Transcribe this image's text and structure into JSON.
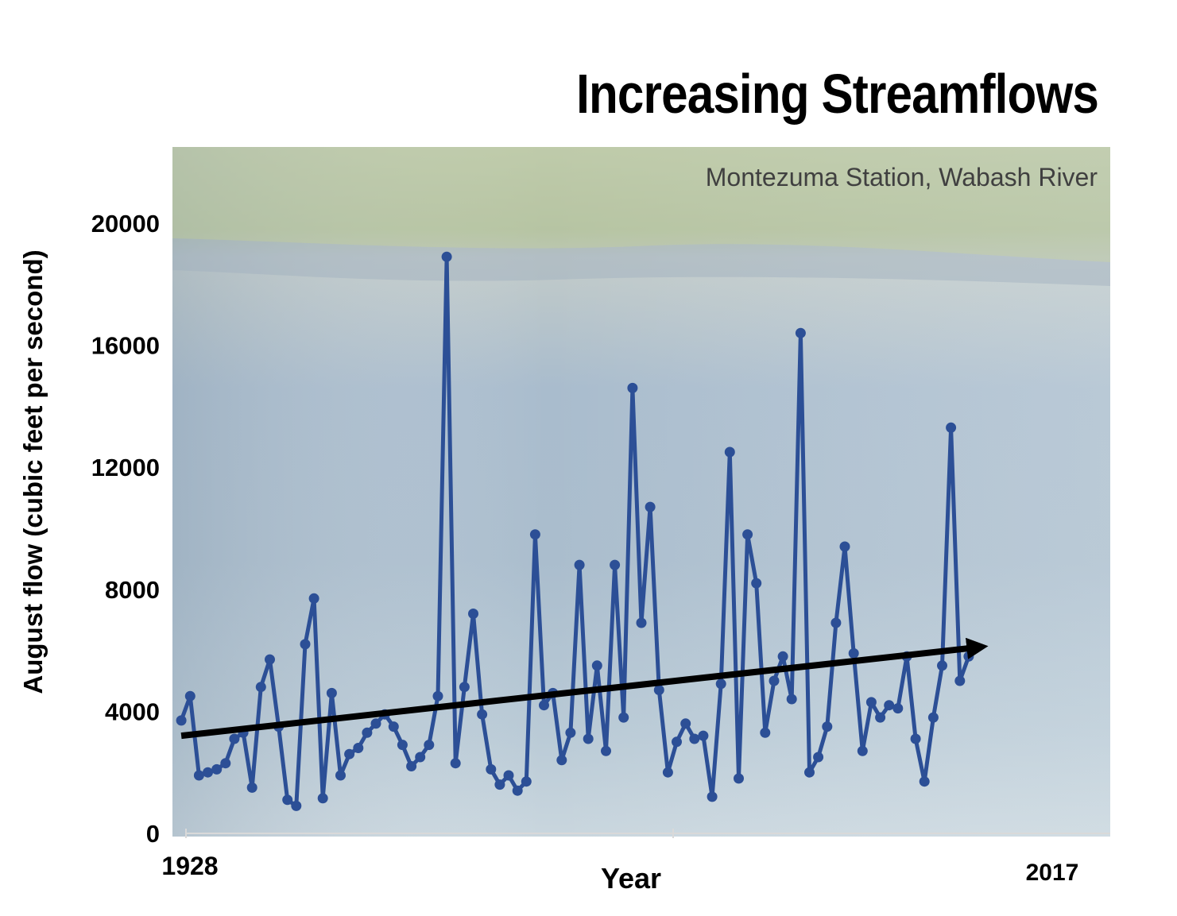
{
  "chart_data": {
    "type": "line",
    "title": "Increasing Streamflows",
    "subtitle": "Montezuma Station, Wabash River",
    "xlabel": "Year",
    "ylabel": "August flow (cubic feet per second)",
    "x_tick_labels": [
      "1928",
      "2017"
    ],
    "y_ticks": [
      0,
      4000,
      8000,
      12000,
      16000,
      20000
    ],
    "ylim": [
      0,
      22500
    ],
    "xlim": [
      1927,
      2033
    ],
    "grid": false,
    "series": [
      {
        "values": [
          3700,
          4500,
          1900,
          2000,
          2100,
          2300,
          3100,
          3300,
          1500,
          4800,
          5700,
          3500,
          1100,
          900,
          6200,
          7700,
          1150,
          4600,
          1900,
          2600,
          2800,
          3300,
          3600,
          3900,
          3500,
          2900,
          2200,
          2500,
          2900,
          4500,
          18900,
          2300,
          4800,
          7200,
          3900,
          2100,
          1600,
          1900,
          1400,
          1700,
          9800,
          4200,
          4600,
          2400,
          3300,
          8800,
          3100,
          5500,
          2700,
          8800,
          3800,
          14600,
          6900,
          10700,
          4700,
          2000,
          3000,
          3600,
          3100,
          3200,
          1200,
          4900,
          12500,
          1800,
          9800,
          8200,
          3300,
          5000,
          5800,
          4400,
          16400,
          2000,
          2500,
          3500,
          6900,
          9400,
          5900,
          2700,
          4300,
          3800,
          4200,
          4100,
          5800,
          3100,
          1700,
          3800,
          5500,
          13300,
          5000,
          5800
        ]
      }
    ],
    "trend_arrow": {
      "from": [
        1928,
        3200
      ],
      "to": [
        2018,
        6100
      ]
    },
    "colors": {
      "line": "#2c4f96",
      "arrow": "#000000",
      "background": "#ffffff"
    }
  }
}
